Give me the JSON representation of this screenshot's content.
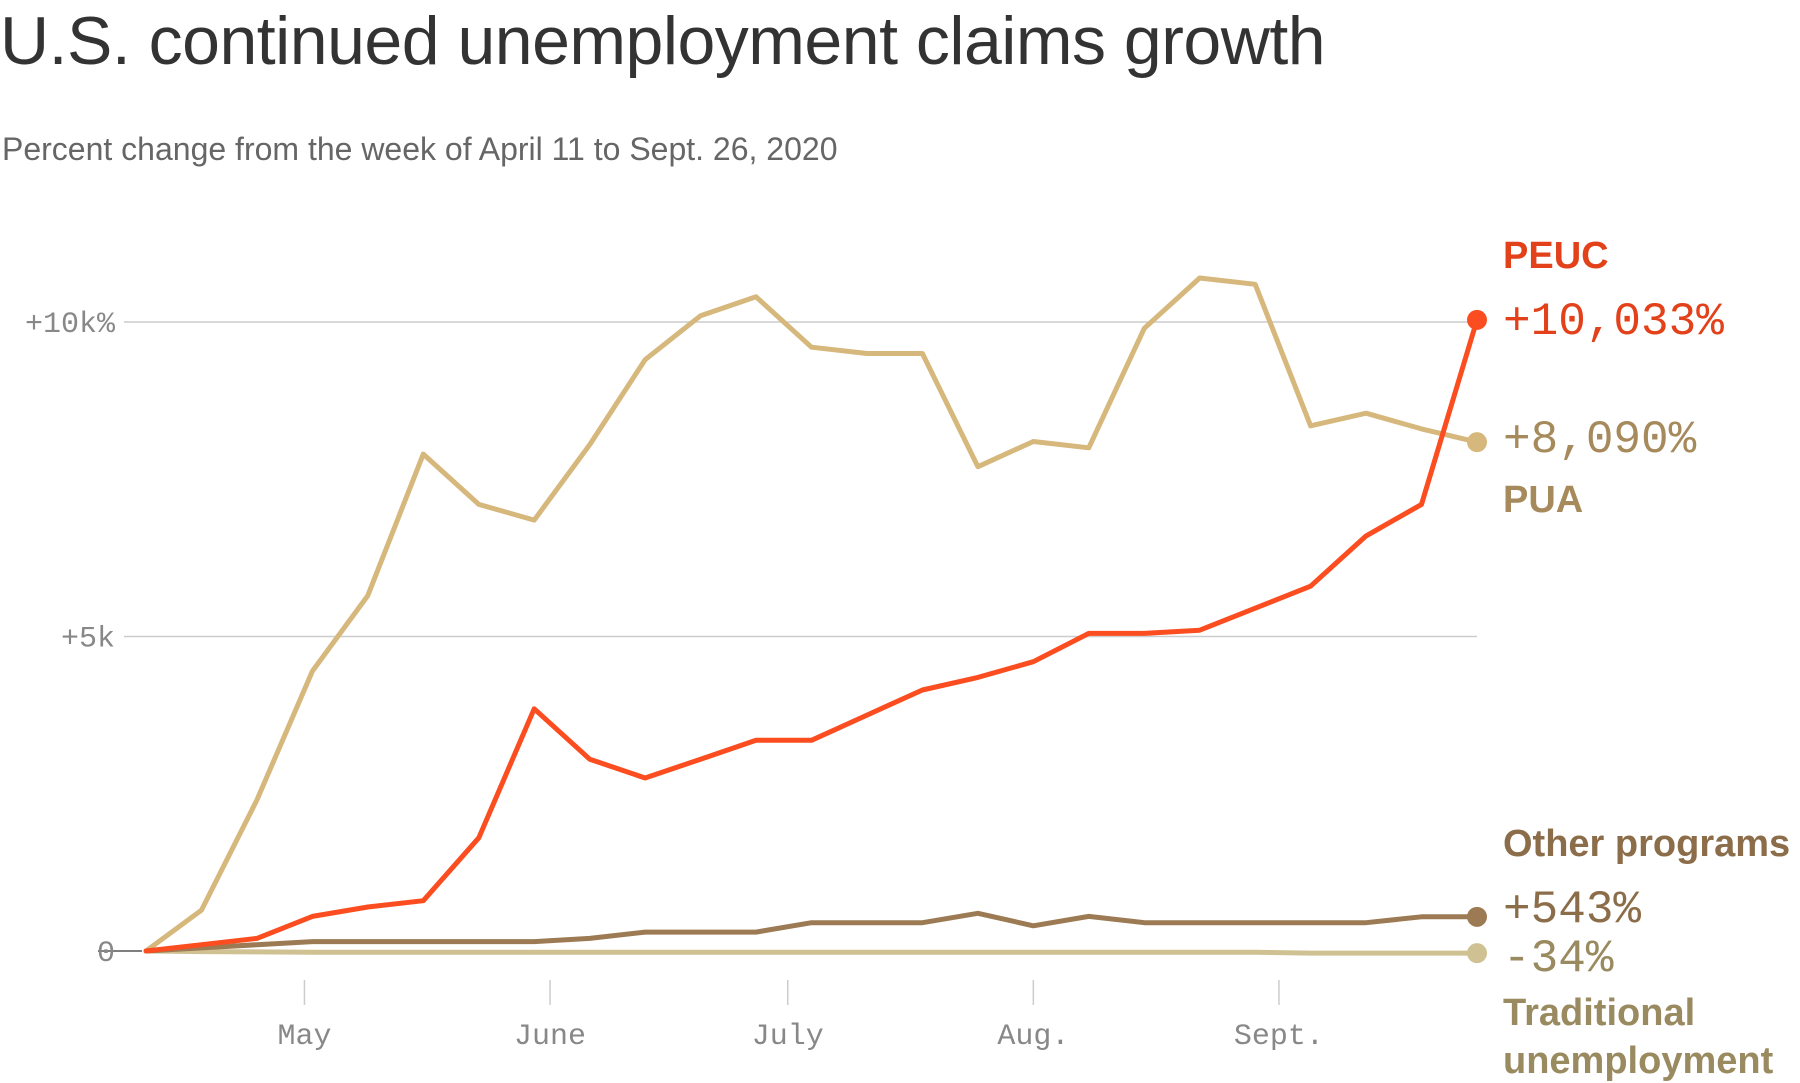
{
  "chart_data": {
    "type": "line",
    "title": "U.S. continued unemployment claims growth",
    "subtitle": "Percent change from the week of April 11 to Sept. 26, 2020",
    "x": [
      "2020-04-11",
      "2020-04-18",
      "2020-04-25",
      "2020-05-02",
      "2020-05-09",
      "2020-05-16",
      "2020-05-23",
      "2020-05-30",
      "2020-06-06",
      "2020-06-13",
      "2020-06-20",
      "2020-06-27",
      "2020-07-04",
      "2020-07-11",
      "2020-07-18",
      "2020-07-25",
      "2020-08-01",
      "2020-08-08",
      "2020-08-15",
      "2020-08-22",
      "2020-08-29",
      "2020-09-05",
      "2020-09-12",
      "2020-09-19",
      "2020-09-26"
    ],
    "x_ticks": [
      {
        "date": "2020-05-01",
        "label": "May"
      },
      {
        "date": "2020-06-01",
        "label": "June"
      },
      {
        "date": "2020-07-01",
        "label": "July"
      },
      {
        "date": "2020-08-01",
        "label": "Aug."
      },
      {
        "date": "2020-09-01",
        "label": "Sept."
      }
    ],
    "y_ticks": [
      {
        "value": 0,
        "label": "0"
      },
      {
        "value": 5000,
        "label": "+5k"
      },
      {
        "value": 10000,
        "label": "+10k%"
      }
    ],
    "ylim": [
      0,
      10000
    ],
    "xlabel": "",
    "ylabel": "",
    "grid": "horizontal",
    "series": [
      {
        "name": "PUA",
        "value_label": "+8,090%",
        "color": "#d6b77c",
        "label_color": "#a68a5c",
        "values": [
          0,
          650,
          2400,
          4450,
          5650,
          7900,
          7100,
          6850,
          8050,
          9400,
          10100,
          10400,
          9600,
          9500,
          9500,
          7700,
          8100,
          8000,
          9900,
          10700,
          10600,
          8350,
          8550,
          8300,
          8090
        ]
      },
      {
        "name": "PEUC",
        "value_label": "+10,033%",
        "color": "#fb4d1f",
        "label_color": "#e2411a",
        "values": [
          0,
          100,
          200,
          550,
          700,
          800,
          1800,
          3850,
          3050,
          2750,
          3050,
          3350,
          3350,
          3750,
          4150,
          4350,
          4600,
          5050,
          5050,
          5100,
          5450,
          5800,
          6600,
          7100,
          10033
        ]
      },
      {
        "name": "Other programs",
        "value_label": "+543%",
        "color": "#9c7b54",
        "label_color": "#8c6d4a",
        "values": [
          0,
          50,
          100,
          150,
          150,
          150,
          150,
          150,
          200,
          300,
          300,
          300,
          450,
          450,
          450,
          600,
          400,
          550,
          450,
          450,
          450,
          450,
          450,
          543,
          543
        ]
      },
      {
        "name": "Traditional unemployment",
        "value_label": "-34%",
        "color": "#cfc192",
        "label_color": "#9a8a60",
        "values": [
          0,
          -10,
          -15,
          -20,
          -20,
          -20,
          -20,
          -20,
          -20,
          -20,
          -20,
          -20,
          -20,
          -20,
          -20,
          -20,
          -20,
          -20,
          -20,
          -20,
          -20,
          -34,
          -34,
          -34,
          -34
        ]
      }
    ]
  }
}
